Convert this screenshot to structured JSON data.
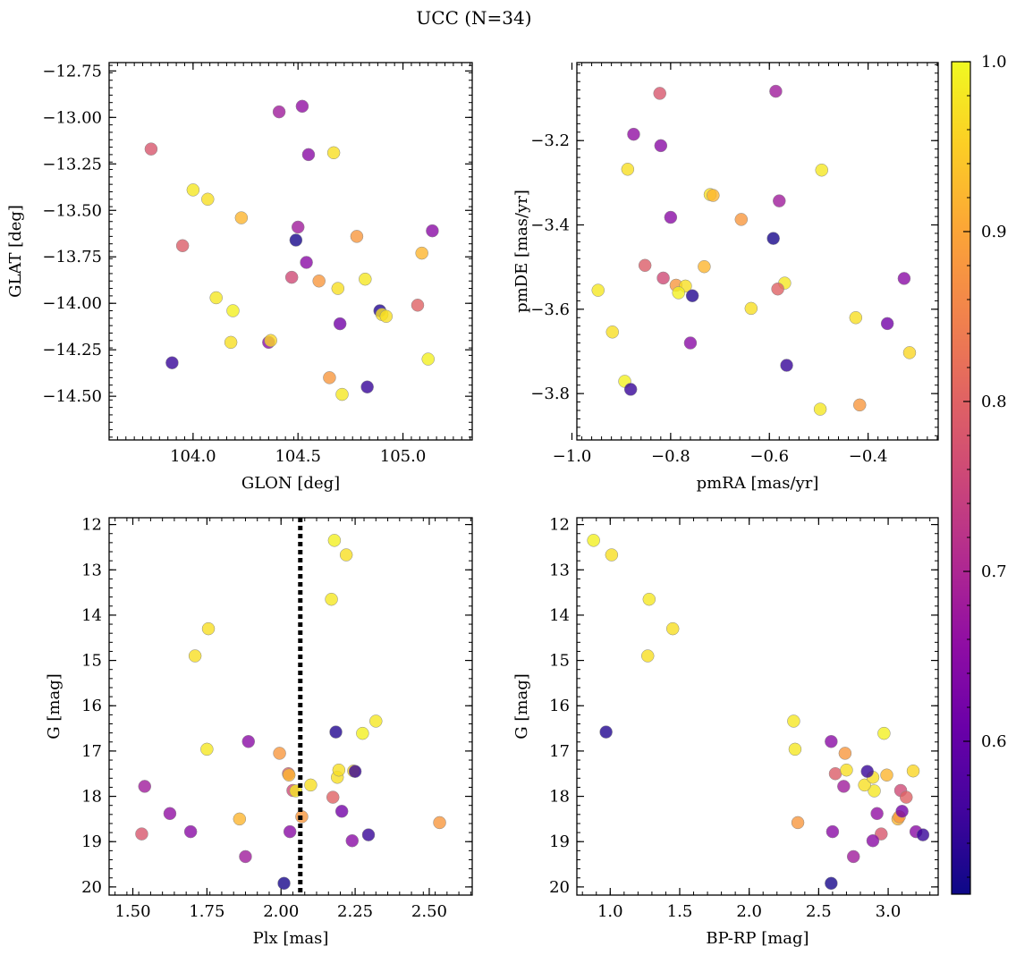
{
  "chart_data": {
    "type": "scatter",
    "title": "UCC (N=34)",
    "colormap": "plasma",
    "colorbar": {
      "range": [
        0.51,
        1.0
      ],
      "ticks": [
        0.6,
        0.7,
        0.8,
        0.9,
        1.0
      ],
      "tick_labels": [
        "0.6",
        "0.7",
        "0.8",
        "0.9",
        "1.0"
      ]
    },
    "points": [
      {
        "glon": 103.8,
        "glat": -13.17,
        "pmra": -0.822,
        "pmde": -3.088,
        "plx": 1.53,
        "g": 18.83,
        "bprp": 2.95,
        "c": 0.78
      },
      {
        "glon": 104.41,
        "glat": -12.97,
        "pmra": -0.587,
        "pmde": -3.083,
        "plx": 1.54,
        "g": 17.78,
        "bprp": 2.68,
        "c": 0.68
      },
      {
        "glon": 104.52,
        "glat": -12.94,
        "pmra": -0.875,
        "pmde": -3.185,
        "plx": 1.625,
        "g": 18.38,
        "bprp": 2.92,
        "c": 0.66
      },
      {
        "glon": 104.55,
        "glat": -13.2,
        "pmra": -0.82,
        "pmde": -3.212,
        "plx": 1.695,
        "g": 18.78,
        "bprp": 2.6,
        "c": 0.65
      },
      {
        "glon": 104.67,
        "glat": -13.19,
        "pmra": -0.887,
        "pmde": -3.268,
        "plx": 1.71,
        "g": 14.9,
        "bprp": 1.27,
        "c": 0.97
      },
      {
        "glon": 104.0,
        "glat": -13.39,
        "pmra": -0.494,
        "pmde": -3.27,
        "plx": 1.75,
        "g": 16.96,
        "bprp": 2.33,
        "c": 0.98
      },
      {
        "glon": 104.07,
        "glat": -13.44,
        "pmra": -0.72,
        "pmde": -3.328,
        "plx": 1.755,
        "g": 14.3,
        "bprp": 1.45,
        "c": 0.97
      },
      {
        "glon": 104.23,
        "glat": -13.54,
        "pmra": -0.714,
        "pmde": -3.33,
        "plx": 1.86,
        "g": 18.5,
        "bprp": 3.07,
        "c": 0.92
      },
      {
        "glon": 104.5,
        "glat": -13.59,
        "pmra": -0.58,
        "pmde": -3.343,
        "plx": 1.88,
        "g": 19.33,
        "bprp": 2.75,
        "c": 0.68
      },
      {
        "glon": 105.14,
        "glat": -13.61,
        "pmra": -0.8,
        "pmde": -3.382,
        "plx": 1.89,
        "g": 16.79,
        "bprp": 2.59,
        "c": 0.65
      },
      {
        "glon": 104.78,
        "glat": -13.64,
        "pmra": -0.657,
        "pmde": -3.387,
        "plx": 1.995,
        "g": 17.05,
        "bprp": 2.69,
        "c": 0.88
      },
      {
        "glon": 104.49,
        "glat": -13.66,
        "pmra": -0.592,
        "pmde": -3.432,
        "plx": 2.01,
        "g": 19.92,
        "bprp": 2.59,
        "c": 0.52
      },
      {
        "glon": 103.95,
        "glat": -13.69,
        "pmra": -0.852,
        "pmde": -3.496,
        "plx": 2.025,
        "g": 17.5,
        "bprp": 2.62,
        "c": 0.79
      },
      {
        "glon": 105.09,
        "glat": -13.73,
        "pmra": -0.732,
        "pmde": -3.499,
        "plx": 2.027,
        "g": 17.53,
        "bprp": 2.99,
        "c": 0.92
      },
      {
        "glon": 104.54,
        "glat": -13.78,
        "pmra": -0.327,
        "pmde": -3.527,
        "plx": 2.03,
        "g": 18.78,
        "bprp": 3.2,
        "c": 0.65
      },
      {
        "glon": 104.47,
        "glat": -13.86,
        "pmra": -0.815,
        "pmde": -3.526,
        "plx": 2.04,
        "g": 17.87,
        "bprp": 3.09,
        "c": 0.76
      },
      {
        "glon": 104.82,
        "glat": -13.87,
        "pmra": -0.569,
        "pmde": -3.538,
        "plx": 2.05,
        "g": 17.88,
        "bprp": 2.9,
        "c": 0.98
      },
      {
        "glon": 104.6,
        "glat": -13.88,
        "pmra": -0.789,
        "pmde": -3.543,
        "plx": 2.07,
        "g": 18.45,
        "bprp": 3.08,
        "c": 0.88
      },
      {
        "glon": 104.69,
        "glat": -13.92,
        "pmra": -0.77,
        "pmde": -3.545,
        "plx": 2.1,
        "g": 17.75,
        "bprp": 2.83,
        "c": 0.97
      },
      {
        "glon": 104.11,
        "glat": -13.97,
        "pmra": -0.947,
        "pmde": -3.555,
        "plx": 2.17,
        "g": 13.65,
        "bprp": 1.28,
        "c": 0.98
      },
      {
        "glon": 105.07,
        "glat": -14.01,
        "pmra": -0.583,
        "pmde": -3.552,
        "plx": 2.175,
        "g": 18.02,
        "bprp": 3.13,
        "c": 0.8
      },
      {
        "glon": 104.19,
        "glat": -14.04,
        "pmra": -0.784,
        "pmde": -3.561,
        "plx": 2.18,
        "g": 12.35,
        "bprp": 0.88,
        "c": 0.99
      },
      {
        "glon": 104.89,
        "glat": -14.04,
        "pmra": -0.756,
        "pmde": -3.568,
        "plx": 2.185,
        "g": 16.58,
        "bprp": 0.97,
        "c": 0.53
      },
      {
        "glon": 104.9,
        "glat": -14.06,
        "pmra": -0.637,
        "pmde": -3.598,
        "plx": 2.19,
        "g": 17.58,
        "bprp": 2.89,
        "c": 0.97
      },
      {
        "glon": 104.92,
        "glat": -14.07,
        "pmra": -0.425,
        "pmde": -3.62,
        "plx": 2.195,
        "g": 17.42,
        "bprp": 2.7,
        "c": 0.97
      },
      {
        "glon": 104.7,
        "glat": -14.11,
        "pmra": -0.361,
        "pmde": -3.634,
        "plx": 2.205,
        "g": 18.33,
        "bprp": 3.1,
        "c": 0.62
      },
      {
        "glon": 104.18,
        "glat": -14.21,
        "pmra": -0.918,
        "pmde": -3.654,
        "plx": 2.22,
        "g": 12.67,
        "bprp": 1.01,
        "c": 0.97
      },
      {
        "glon": 104.36,
        "glat": -14.21,
        "pmra": -0.76,
        "pmde": -3.68,
        "plx": 2.24,
        "g": 18.98,
        "bprp": 2.89,
        "c": 0.65
      },
      {
        "glon": 104.37,
        "glat": -14.2,
        "pmra": -0.316,
        "pmde": -3.703,
        "plx": 2.245,
        "g": 17.44,
        "bprp": 3.18,
        "c": 0.96
      },
      {
        "glon": 103.9,
        "glat": -14.32,
        "pmra": -0.565,
        "pmde": -3.733,
        "plx": 2.25,
        "g": 17.45,
        "bprp": 2.85,
        "c": 0.55
      },
      {
        "glon": 105.12,
        "glat": -14.3,
        "pmra": -0.893,
        "pmde": -3.771,
        "plx": 2.275,
        "g": 16.61,
        "bprp": 2.97,
        "c": 0.99
      },
      {
        "glon": 104.83,
        "glat": -14.45,
        "pmra": -0.881,
        "pmde": -3.79,
        "plx": 2.295,
        "g": 18.85,
        "bprp": 3.25,
        "c": 0.55
      },
      {
        "glon": 104.71,
        "glat": -14.49,
        "pmra": -0.497,
        "pmde": -3.837,
        "plx": 2.32,
        "g": 16.34,
        "bprp": 2.32,
        "c": 0.98
      },
      {
        "glon": 104.65,
        "glat": -14.4,
        "pmra": -0.417,
        "pmde": -3.827,
        "plx": 2.535,
        "g": 18.58,
        "bprp": 2.35,
        "c": 0.88
      }
    ],
    "panels": [
      {
        "id": "glon-glat",
        "xkey": "glon",
        "ykey": "glat",
        "xlabel": "GLON [deg]",
        "ylabel": "GLAT [deg]",
        "xlim": [
          103.6,
          105.33
        ],
        "ylim": [
          -14.735,
          -12.705
        ],
        "y_inverted": false,
        "xticks": [
          104.0,
          104.5,
          105.0
        ],
        "xtick_labels": [
          "104.0",
          "104.5",
          "105.0"
        ],
        "yticks": [
          -12.75,
          -13.0,
          -13.25,
          -13.5,
          -13.75,
          -14.0,
          -14.25,
          -14.5
        ],
        "ytick_labels": [
          "−12.75",
          "−13.00",
          "−13.25",
          "−13.50",
          "−13.75",
          "−14.00",
          "−14.25",
          "−14.50"
        ]
      },
      {
        "id": "pmra-pmde",
        "xkey": "pmra",
        "ykey": "pmde",
        "xlabel": "pmRA [mas/yr]",
        "ylabel": "pmDE [mas/yr]",
        "xlim": [
          -0.99,
          -0.258
        ],
        "ylim": [
          -3.91,
          -3.015
        ],
        "y_inverted": false,
        "xticks": [
          -1.0,
          -0.8,
          -0.6,
          -0.4
        ],
        "xtick_labels": [
          "−1.0",
          "−0.8",
          "−0.6",
          "−0.4"
        ],
        "yticks": [
          -3.2,
          -3.4,
          -3.6,
          -3.8
        ],
        "ytick_labels": [
          "−3.2",
          "−3.4",
          "−3.6",
          "−3.8"
        ]
      },
      {
        "id": "plx-g",
        "xkey": "plx",
        "ykey": "g",
        "xlabel": "Plx [mas]",
        "ylabel": "G [mag]",
        "xlim": [
          1.42,
          2.645
        ],
        "ylim": [
          20.18,
          11.85
        ],
        "y_inverted": true,
        "xticks": [
          1.5,
          1.75,
          2.0,
          2.25,
          2.5
        ],
        "xtick_labels": [
          "1.50",
          "1.75",
          "2.00",
          "2.25",
          "2.50"
        ],
        "yticks": [
          12,
          13,
          14,
          15,
          16,
          17,
          18,
          19,
          20
        ],
        "ytick_labels": [
          "12",
          "13",
          "14",
          "15",
          "16",
          "17",
          "18",
          "19",
          "20"
        ],
        "vline": 2.065
      },
      {
        "id": "bprp-g",
        "xkey": "bprp",
        "ykey": "g",
        "xlabel": "BP-RP [mag]",
        "ylabel": "G [mag]",
        "xlim": [
          0.76,
          3.36
        ],
        "ylim": [
          20.18,
          11.85
        ],
        "y_inverted": true,
        "xticks": [
          1.0,
          1.5,
          2.0,
          2.5,
          3.0
        ],
        "xtick_labels": [
          "1.0",
          "1.5",
          "2.0",
          "2.5",
          "3.0"
        ],
        "yticks": [
          12,
          13,
          14,
          15,
          16,
          17,
          18,
          19,
          20
        ],
        "ytick_labels": [
          "12",
          "13",
          "14",
          "15",
          "16",
          "17",
          "18",
          "19",
          "20"
        ]
      }
    ]
  }
}
